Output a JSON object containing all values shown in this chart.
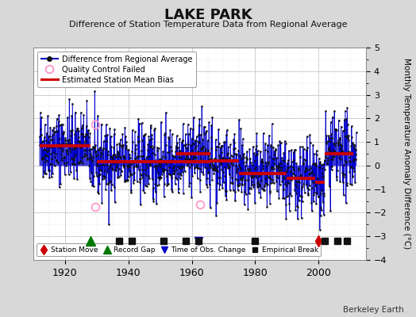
{
  "title": "LAKE PARK",
  "subtitle": "Difference of Station Temperature Data from Regional Average",
  "ylabel": "Monthly Temperature Anomaly Difference (°C)",
  "xlabel_ticks": [
    1920,
    1940,
    1960,
    1980,
    2000
  ],
  "ylim": [
    -4,
    5
  ],
  "xlim": [
    1910,
    2015
  ],
  "bg_color": "#d8d8d8",
  "plot_bg_color": "#ffffff",
  "grid_color": "#c8c8c8",
  "seed": 42,
  "time_start": 1912,
  "time_end": 2011,
  "bias_segments": [
    {
      "x_start": 1912,
      "x_end": 1928,
      "bias": 0.85
    },
    {
      "x_start": 1930,
      "x_end": 1937,
      "bias": 0.15
    },
    {
      "x_start": 1937,
      "x_end": 1966,
      "bias": 0.15
    },
    {
      "x_start": 1955,
      "x_end": 1966,
      "bias": 0.5
    },
    {
      "x_start": 1966,
      "x_end": 1975,
      "bias": 0.2
    },
    {
      "x_start": 1975,
      "x_end": 1990,
      "bias": -0.35
    },
    {
      "x_start": 1990,
      "x_end": 1999,
      "bias": -0.55
    },
    {
      "x_start": 1999,
      "x_end": 2002,
      "bias": -0.7
    },
    {
      "x_start": 2002,
      "x_end": 2011,
      "bias": 0.5
    }
  ],
  "station_move": [
    2000
  ],
  "record_gap": [
    1928
  ],
  "time_of_obs_change": [
    1962
  ],
  "empirical_break": [
    1937,
    1941,
    1951,
    1958,
    1962,
    1980,
    2002,
    2006,
    2009
  ],
  "qc_failed_approx": [
    {
      "year": 1929.5,
      "val": 1.75
    },
    {
      "year": 1962.5,
      "val": -1.65
    },
    {
      "year": 1929.5,
      "val": -1.75
    }
  ],
  "line_color": "#0000cc",
  "bias_color": "#cc0000",
  "marker_color": "#111111",
  "qc_color": "#ff99cc",
  "station_move_color": "#cc0000",
  "record_gap_color": "#007700",
  "tobs_color": "#0000cc",
  "empirical_color": "#111111",
  "footer": "Berkeley Earth"
}
